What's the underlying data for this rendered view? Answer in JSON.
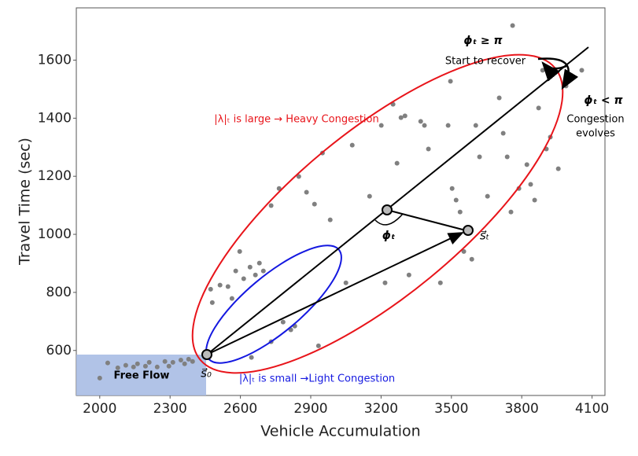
{
  "chart_data": {
    "type": "scatter",
    "x_label": "Vehicle Accumulation",
    "y_label": "Travel Time (sec)",
    "xlim": [
      1900,
      4155
    ],
    "ylim": [
      445,
      1780
    ],
    "xticks": [
      2000,
      2300,
      2600,
      2900,
      3200,
      3500,
      3800,
      4100
    ],
    "yticks": [
      600,
      800,
      1000,
      1200,
      1400,
      1600
    ],
    "color": "#808080",
    "x": [
      2000,
      2034,
      2077,
      2111,
      2144,
      2161,
      2195,
      2211,
      2245,
      2278,
      2295,
      2312,
      2346,
      2362,
      2379,
      2396,
      2473,
      2480,
      2513,
      2547,
      2564,
      2580,
      2597,
      2614,
      2641,
      2664,
      2681,
      2698,
      2731,
      2765,
      2782,
      2815,
      2832,
      2849,
      2882,
      2916,
      2933,
      2950,
      2983,
      3050,
      3077,
      3151,
      3201,
      3217,
      3251,
      3268,
      3285,
      3302,
      3319,
      3369,
      3385,
      3402,
      3453,
      3486,
      3503,
      3520,
      3537,
      3553,
      3587,
      3604,
      3620,
      3654,
      3704,
      3721,
      3738,
      3754,
      3788,
      3822,
      3838,
      3855,
      3872,
      3889,
      3905,
      3922,
      3956,
      3989,
      4056,
      3761,
      3496,
      2731,
      2647
    ],
    "values": [
      505,
      557,
      540,
      549,
      543,
      554,
      546,
      559,
      543,
      562,
      546,
      559,
      567,
      554,
      570,
      562,
      811,
      765,
      825,
      820,
      779,
      874,
      941,
      847,
      887,
      860,
      901,
      874,
      1099,
      1158,
      698,
      671,
      684,
      1199,
      1145,
      1104,
      616,
      1280,
      1050,
      833,
      1307,
      1131,
      1375,
      833,
      1448,
      1245,
      1402,
      1408,
      860,
      1389,
      1375,
      1294,
      833,
      1375,
      1158,
      1118,
      1077,
      941,
      914,
      1375,
      1267,
      1131,
      1470,
      1348,
      1267,
      1077,
      1158,
      1240,
      1172,
      1118,
      1435,
      1565,
      1294,
      1335,
      1226,
      1511,
      1565,
      1719,
      1527,
      630,
      576
    ],
    "annotations": {
      "free_flow": "Free Flow",
      "s0": "s⃗₀",
      "st": "s⃗ₜ",
      "phi": "ϕₜ",
      "heavy": "|λ|ₜ  is large → Heavy Congestion",
      "light": "|λ|ₜ is small →Light Congestion",
      "recover_cond": "ϕₜ ≥ π",
      "recover": "Start to recover",
      "evolve_cond": "ϕₜ < π",
      "evolve_1": "Congestion",
      "evolve_2": "evolves"
    }
  }
}
